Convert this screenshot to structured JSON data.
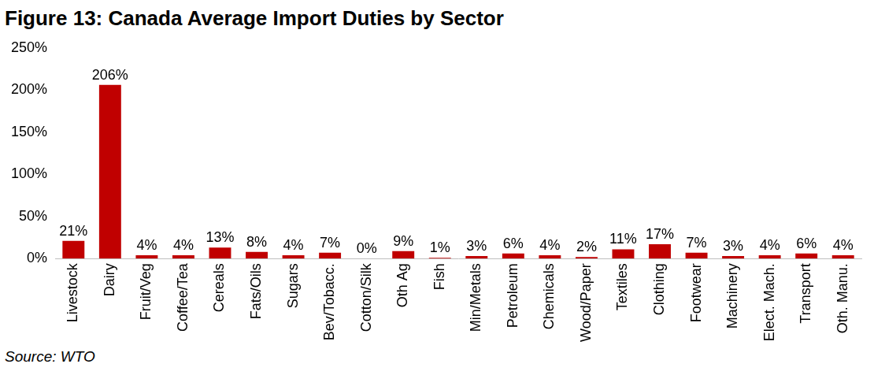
{
  "chart_data": {
    "type": "bar",
    "title": "Figure 13: Canada Average Import Duties by Sector",
    "source": "Source: WTO",
    "categories": [
      "Livestock",
      "Dairy",
      "Fruit/Veg",
      "Coffee/Tea",
      "Cereals",
      "Fats/Oils",
      "Sugars",
      "Bev/Tobacc.",
      "Cotton/Silk",
      "Oth Ag",
      "Fish",
      "Min/Metals",
      "Petroleum",
      "Chemicals",
      "Wood/Paper",
      "Textiles",
      "Clothing",
      "Footwear",
      "Machinery",
      "Elect. Mach.",
      "Transport",
      "Oth. Manu."
    ],
    "values": [
      21,
      206,
      4,
      4,
      13,
      8,
      4,
      7,
      0,
      9,
      1,
      3,
      6,
      4,
      2,
      11,
      17,
      7,
      3,
      4,
      6,
      4
    ],
    "value_labels": [
      "21%",
      "206%",
      "4%",
      "4%",
      "13%",
      "8%",
      "4%",
      "7%",
      "0%",
      "9%",
      "1%",
      "3%",
      "6%",
      "4%",
      "2%",
      "11%",
      "17%",
      "7%",
      "3%",
      "4%",
      "6%",
      "4%"
    ],
    "data_labels": true,
    "color": "#c00000",
    "ylim": [
      0,
      250
    ],
    "yticks": [
      {
        "value": 0,
        "label": "0%"
      },
      {
        "value": 50,
        "label": "50%"
      },
      {
        "value": 100,
        "label": "100%"
      },
      {
        "value": 150,
        "label": "150%"
      },
      {
        "value": 200,
        "label": "200%"
      },
      {
        "value": 250,
        "label": "250%"
      }
    ],
    "grid": false
  }
}
